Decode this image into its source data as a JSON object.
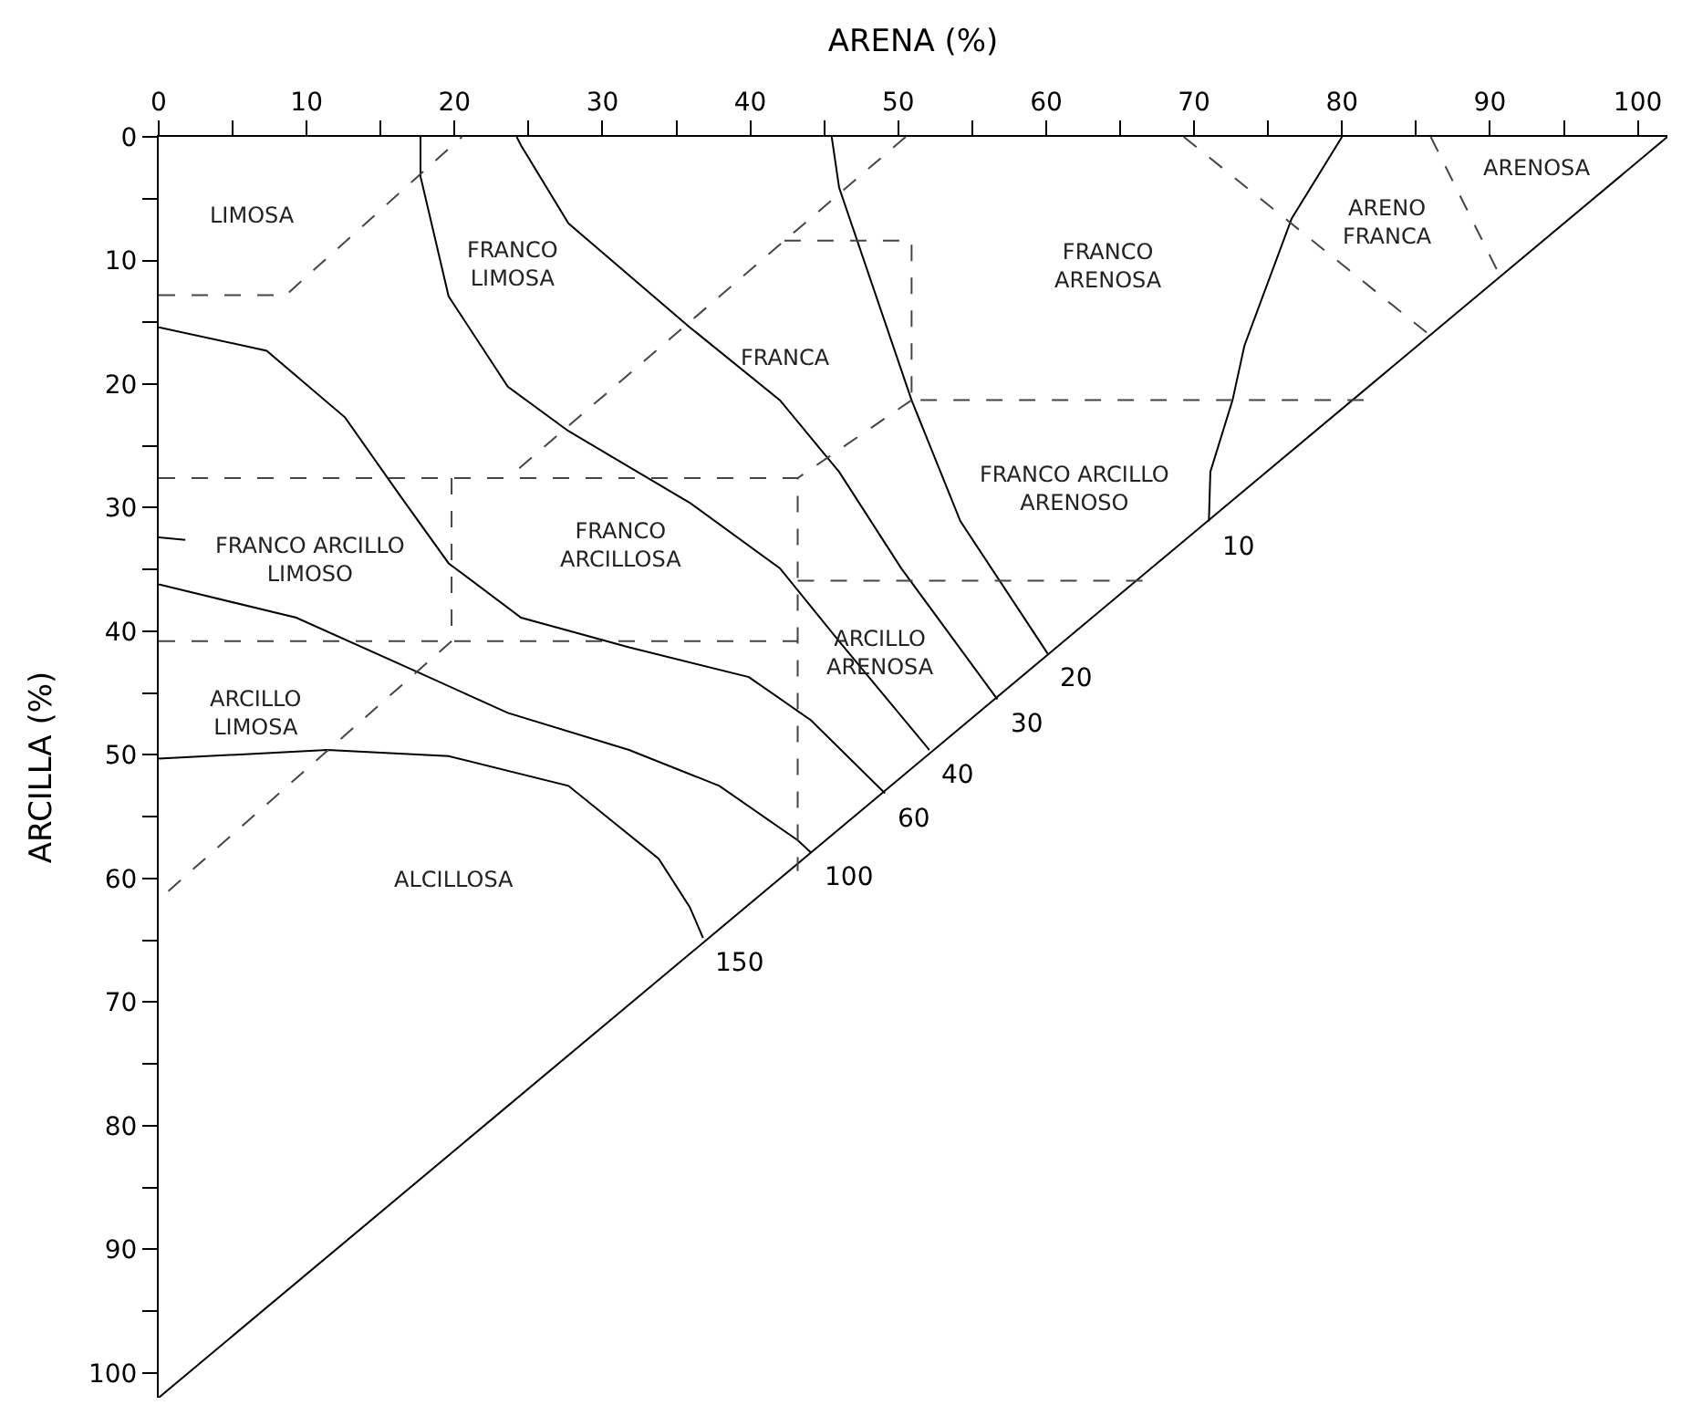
{
  "chart_data": {
    "type": "line",
    "xlabel": "ARENA (%)",
    "ylabel": "ARCILLA (%)",
    "xlim": [
      0,
      102
    ],
    "ylim": [
      102,
      0
    ],
    "xticks": [
      0,
      {
        "value": 5,
        "label": null
      },
      10,
      {
        "value": 15,
        "label": null
      },
      20,
      {
        "value": 25,
        "label": null
      },
      30,
      {
        "value": 35,
        "label": null
      },
      40,
      {
        "value": 45,
        "label": null
      },
      50,
      {
        "value": 55,
        "label": null
      },
      60,
      {
        "value": 65,
        "label": null
      },
      70,
      {
        "value": 75,
        "label": null
      },
      80,
      {
        "value": 85,
        "label": null
      },
      90,
      {
        "value": 95,
        "label": null
      },
      100
    ],
    "yticks": [
      0,
      {
        "value": 5,
        "label": null
      },
      10,
      {
        "value": 15,
        "label": null
      },
      20,
      {
        "value": 25,
        "label": null
      },
      30,
      {
        "value": 35,
        "label": null
      },
      40,
      {
        "value": 45,
        "label": null
      },
      50,
      {
        "value": 55,
        "label": null
      },
      60,
      {
        "value": 65,
        "label": null
      },
      70,
      {
        "value": 75,
        "label": null
      },
      80,
      {
        "value": 85,
        "label": null
      },
      90,
      {
        "value": 95,
        "label": null
      },
      100
    ],
    "legend": false,
    "marker": "none",
    "line_style": "solid",
    "series": [
      {
        "color": "#000000",
        "x": [
          0,
          102
        ],
        "values": [
          102,
          0
        ]
      },
      {
        "color": "#000000",
        "name": "10",
        "x": [
          80.0,
          76.6,
          73.4,
          72.6,
          71.1,
          71.0
        ],
        "values": [
          0,
          6.6,
          16.9,
          21.3,
          27.1,
          31.1
        ]
      },
      {
        "color": "#000000",
        "name": "20",
        "x": [
          45.5,
          46.0,
          50.9,
          54.2,
          60.1
        ],
        "values": [
          0,
          4.1,
          21.3,
          31.1,
          41.8
        ]
      },
      {
        "color": "#000000",
        "name": "30",
        "x": [
          24.2,
          24.5,
          27.7,
          35.9,
          42.0,
          46.0,
          50.2,
          56.7
        ],
        "values": [
          0,
          0.7,
          7.0,
          15.4,
          21.3,
          27.1,
          34.9,
          45.5
        ]
      },
      {
        "color": "#000000",
        "name": "40",
        "x": [
          17.7,
          17.7,
          19.6,
          23.6,
          27.7,
          35.9,
          42.0,
          46.0,
          52.1
        ],
        "values": [
          0,
          3.2,
          12.9,
          20.2,
          23.8,
          29.6,
          34.9,
          40.8,
          49.6
        ]
      },
      {
        "color": "#000000",
        "name": "60",
        "x": [
          0,
          7.3,
          12.6,
          16.3,
          19.6,
          24.5,
          31.8,
          39.9,
          44.1,
          49.1
        ],
        "values": [
          15.4,
          17.3,
          22.7,
          29.0,
          34.5,
          38.9,
          41.3,
          43.7,
          47.2,
          53.1
        ]
      },
      {
        "color": "#000000",
        "x": [
          0,
          1.8
        ],
        "values": [
          32.4,
          32.6
        ]
      },
      {
        "color": "#000000",
        "name": "100",
        "x": [
          0,
          9.3,
          17.5,
          23.6,
          31.8,
          37.9,
          43.2,
          44.1
        ],
        "values": [
          36.2,
          38.9,
          43.3,
          46.6,
          49.6,
          52.5,
          56.9,
          57.9
        ]
      },
      {
        "color": "#000000",
        "name": "150",
        "x": [
          0,
          11.4,
          19.6,
          27.7,
          33.8,
          35.9,
          36.8
        ],
        "values": [
          50.3,
          49.6,
          50.1,
          52.5,
          58.4,
          62.3,
          64.8
        ]
      },
      {
        "color": "#444444",
        "line_style": "dashed",
        "x": [
          0,
          8.6,
          20.5
        ],
        "values": [
          12.8,
          12.8,
          0
        ]
      },
      {
        "color": "#444444",
        "line_style": "dashed",
        "x": [
          50.5,
          42.3,
          23.6
        ],
        "values": [
          0,
          8.4,
          27.6
        ]
      },
      {
        "color": "#444444",
        "line_style": "dashed",
        "x": [
          42.3,
          50.9,
          50.9,
          81.5
        ],
        "values": [
          8.4,
          8.4,
          21.3,
          21.3
        ]
      },
      {
        "color": "#444444",
        "line_style": "dashed",
        "x": [
          50.9,
          43.2
        ],
        "values": [
          21.3,
          27.6
        ]
      },
      {
        "color": "#444444",
        "line_style": "dashed",
        "x": [
          0,
          43.2,
          43.2
        ],
        "values": [
          27.6,
          27.6,
          59.4
        ]
      },
      {
        "color": "#444444",
        "line_style": "dashed",
        "x": [
          43.2,
          66.8
        ],
        "values": [
          35.9,
          35.9
        ]
      },
      {
        "color": "#444444",
        "line_style": "dashed",
        "x": [
          19.8,
          19.8
        ],
        "values": [
          27.6,
          40.8
        ]
      },
      {
        "color": "#444444",
        "line_style": "dashed",
        "x": [
          0,
          43.2
        ],
        "values": [
          40.8,
          40.8
        ]
      },
      {
        "color": "#444444",
        "line_style": "dashed",
        "x": [
          19.8,
          0
        ],
        "values": [
          40.8,
          61.7
        ]
      },
      {
        "color": "#444444",
        "line_style": "dashed",
        "x": [
          69.3,
          86.0
        ],
        "values": [
          0,
          16.1
        ]
      },
      {
        "color": "#444444",
        "line_style": "dashed",
        "x": [
          86.0,
          90.7
        ],
        "values": [
          0,
          11.3
        ]
      }
    ],
    "annotations": [
      "LIMOSA",
      "FRANCO\nLIMOSA",
      "FRANCA",
      "FRANCO\nARENOSA",
      "ARENO\nFRANCA",
      "ARENOSA",
      "FRANCO ARCILLO\nARENOSO",
      "FRANCO ARCILLO\nLIMOSO",
      "FRANCO\nARCILLOSA",
      "ARCILLO\nARENOSA",
      "ARCILLO\nLIMOSA",
      "ALCILLOSA"
    ]
  }
}
